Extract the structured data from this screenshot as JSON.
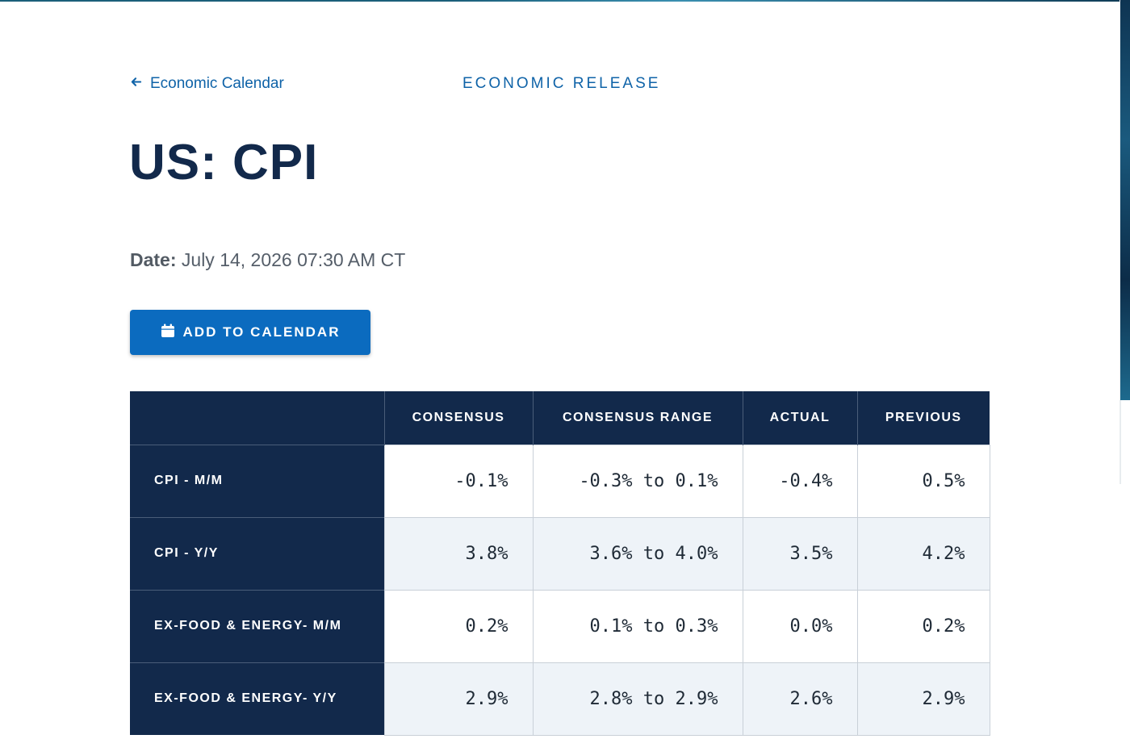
{
  "nav": {
    "back_label": "Economic Calendar",
    "eyebrow": "ECONOMIC RELEASE"
  },
  "page": {
    "title": "US: CPI",
    "date_label": "Date:",
    "date_value": "July 14, 2026 07:30 AM CT"
  },
  "button": {
    "add_to_calendar": "ADD TO CALENDAR"
  },
  "table": {
    "headers": [
      "",
      "CONSENSUS",
      "CONSENSUS RANGE",
      "ACTUAL",
      "PREVIOUS"
    ],
    "rows": [
      {
        "label": "CPI - M/M",
        "consensus": "-0.1%",
        "range": "-0.3% to 0.1%",
        "actual": "-0.4%",
        "previous": "0.5%"
      },
      {
        "label": "CPI - Y/Y",
        "consensus": "3.8%",
        "range": "3.6% to 4.0%",
        "actual": "3.5%",
        "previous": "4.2%"
      },
      {
        "label": "EX-FOOD & ENERGY- M/M",
        "consensus": "0.2%",
        "range": "0.1% to 0.3%",
        "actual": "0.0%",
        "previous": "0.2%"
      },
      {
        "label": "EX-FOOD & ENERGY- Y/Y",
        "consensus": "2.9%",
        "range": "2.8% to 2.9%",
        "actual": "2.6%",
        "previous": "2.9%"
      }
    ]
  },
  "icons": {
    "back": "arrow-left-icon",
    "calendar": "calendar-icon"
  },
  "colors": {
    "navy": "#12294b",
    "accent_blue": "#0b6bbf",
    "link_blue": "#0f63a8",
    "row_alt": "#eef3f8"
  }
}
